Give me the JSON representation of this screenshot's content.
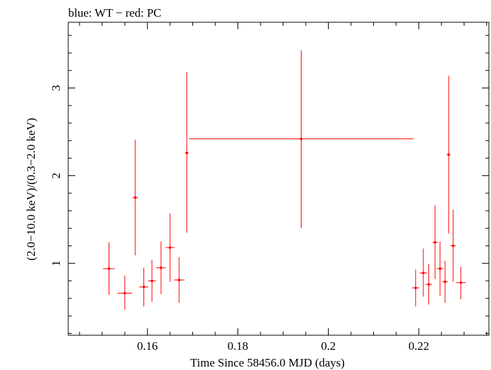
{
  "chart_data": {
    "type": "scatter",
    "title": "blue: WT − red: PC",
    "xlabel": "Time Since 58456.0 MJD (days)",
    "ylabel": "(2.0−10.0 keV)/(0.3−2.0 keV)",
    "xlim": [
      0.1425,
      0.2355
    ],
    "ylim": [
      0.18,
      3.75
    ],
    "x_ticks": [
      0.16,
      0.18,
      0.2,
      0.22
    ],
    "x_tick_labels": [
      "0.16",
      "0.18",
      "0.2",
      "0.22"
    ],
    "y_ticks": [
      1,
      2,
      3
    ],
    "y_tick_labels": [
      "1",
      "2",
      "3"
    ],
    "grid": false,
    "series": [
      {
        "color": "#ff0000",
        "points": [
          {
            "x": 0.1515,
            "y": 0.94,
            "xerr": 0.0013,
            "ylo": 0.64,
            "yhi": 1.24
          },
          {
            "x": 0.155,
            "y": 0.66,
            "xerr": 0.0016,
            "ylo": 0.47,
            "yhi": 0.86
          },
          {
            "x": 0.1573,
            "y": 1.75,
            "xerr": 0.0006,
            "ylo": 1.09,
            "yhi": 2.41
          },
          {
            "x": 0.1592,
            "y": 0.73,
            "xerr": 0.001,
            "ylo": 0.51,
            "yhi": 0.95
          },
          {
            "x": 0.161,
            "y": 0.8,
            "xerr": 0.0009,
            "ylo": 0.56,
            "yhi": 1.04
          },
          {
            "x": 0.163,
            "y": 0.95,
            "xerr": 0.0011,
            "ylo": 0.65,
            "yhi": 1.25
          },
          {
            "x": 0.165,
            "y": 1.18,
            "xerr": 0.001,
            "ylo": 0.79,
            "yhi": 1.57
          },
          {
            "x": 0.167,
            "y": 0.81,
            "xerr": 0.0011,
            "ylo": 0.55,
            "yhi": 1.07
          },
          {
            "x": 0.1687,
            "y": 2.26,
            "xerr": 0.0004,
            "ylo": 1.35,
            "yhi": 3.18
          },
          {
            "x": 0.194,
            "y": 2.42,
            "xerr": 0.0248,
            "ylo": 1.4,
            "yhi": 3.43
          },
          {
            "x": 0.2193,
            "y": 0.72,
            "xerr": 0.0008,
            "ylo": 0.51,
            "yhi": 0.93
          },
          {
            "x": 0.221,
            "y": 0.89,
            "xerr": 0.0008,
            "ylo": 0.62,
            "yhi": 1.17
          },
          {
            "x": 0.2222,
            "y": 0.76,
            "xerr": 0.0007,
            "ylo": 0.53,
            "yhi": 0.99
          },
          {
            "x": 0.2236,
            "y": 1.24,
            "xerr": 0.0006,
            "ylo": 0.82,
            "yhi": 1.66
          },
          {
            "x": 0.2247,
            "y": 0.94,
            "xerr": 0.0007,
            "ylo": 0.63,
            "yhi": 1.25
          },
          {
            "x": 0.2258,
            "y": 0.79,
            "xerr": 0.0006,
            "ylo": 0.55,
            "yhi": 1.03
          },
          {
            "x": 0.2266,
            "y": 2.24,
            "xerr": 0.0004,
            "ylo": 1.34,
            "yhi": 3.14
          },
          {
            "x": 0.2276,
            "y": 1.2,
            "xerr": 0.0006,
            "ylo": 0.79,
            "yhi": 1.61
          },
          {
            "x": 0.2293,
            "y": 0.78,
            "xerr": 0.0011,
            "ylo": 0.59,
            "yhi": 0.96
          }
        ]
      }
    ]
  }
}
